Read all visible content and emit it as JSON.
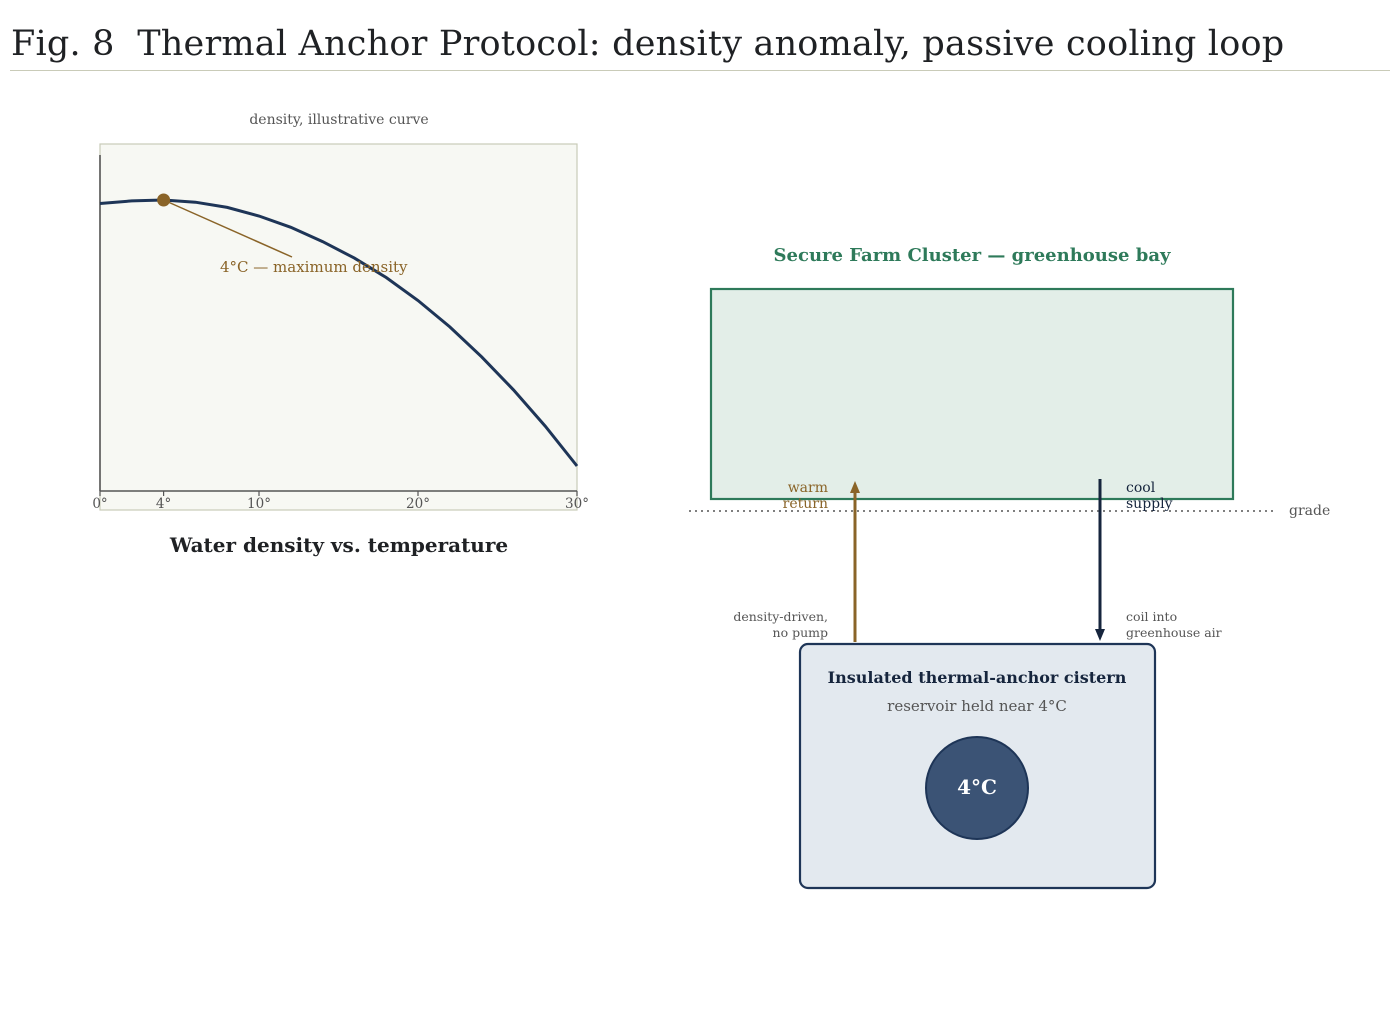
{
  "figure": {
    "title": "Fig. 8  Thermal Anchor Protocol: density anomaly, passive cooling loop"
  },
  "chart_data": {
    "type": "line",
    "title": "Water density vs. temperature",
    "subtitle": "density, illustrative curve",
    "xlabel": "",
    "ylabel": "",
    "x_ticks": [
      "0°",
      "4°",
      "10°",
      "20°",
      "30°"
    ],
    "x_tick_values": [
      0,
      4,
      10,
      20,
      30
    ],
    "xlim": [
      0,
      30
    ],
    "grid": false,
    "series": [
      {
        "x": [
          0,
          2,
          4,
          6,
          8,
          10,
          12,
          14,
          16,
          18,
          20,
          22,
          24,
          26,
          28,
          30
        ],
        "y": [
          0.992,
          0.998,
          1.0,
          0.995,
          0.983,
          0.963,
          0.937,
          0.904,
          0.866,
          0.821,
          0.768,
          0.707,
          0.638,
          0.562,
          0.478,
          0.386
        ]
      }
    ],
    "annotation": {
      "text": "4°C — maximum density",
      "x": 4,
      "y": 1.0
    },
    "colors": {
      "curve": "#1e3557",
      "annotation": "#8a6428",
      "plot_bg": "#f7f8f3"
    }
  },
  "diagram": {
    "greenhouse": {
      "label": "Secure Farm Cluster — greenhouse bay"
    },
    "grade": {
      "label": "grade"
    },
    "warm_return": {
      "label_line1": "warm",
      "label_line2": "return",
      "note_line1": "density-driven,",
      "note_line2": "no pump"
    },
    "cool_supply": {
      "label_line1": "cool",
      "label_line2": "supply",
      "note_line1": "coil into",
      "note_line2": "greenhouse air"
    },
    "cistern": {
      "title": "Insulated thermal-anchor cistern",
      "subtitle": "reservoir held near 4°C",
      "badge": "4°C"
    },
    "colors": {
      "green": "#2e7a5a",
      "green_fill": "#e3eee8",
      "navy": "#1e3557",
      "navy_dark": "#16253d",
      "brown": "#8a6428",
      "cistern_fill": "#e3e9ef",
      "badge_fill": "#3b5375",
      "muted": "#555555"
    }
  }
}
